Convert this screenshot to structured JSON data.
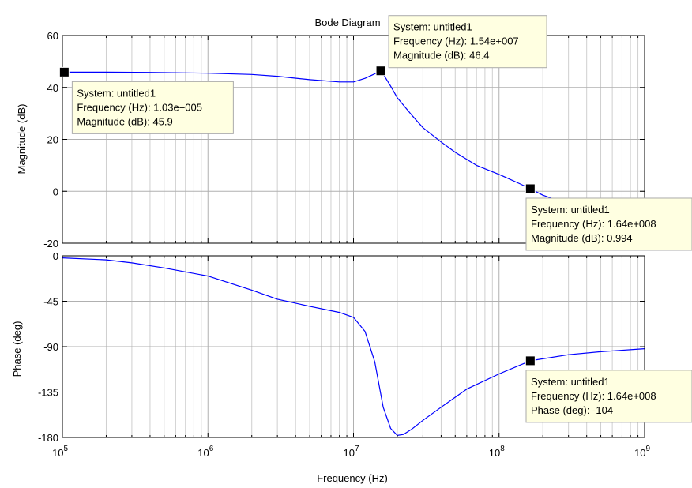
{
  "chart_data": {
    "type": "line",
    "title": "Bode Diagram",
    "xlabel": "Frequency  (Hz)",
    "xscale": "log",
    "xlim": [
      100000,
      1000000000
    ],
    "x_ticks": [
      100000,
      1000000,
      10000000,
      100000000,
      1000000000
    ],
    "x_tick_labels": [
      {
        "base": "10",
        "exp": "5"
      },
      {
        "base": "10",
        "exp": "6"
      },
      {
        "base": "10",
        "exp": "7"
      },
      {
        "base": "10",
        "exp": "8"
      },
      {
        "base": "10",
        "exp": "9"
      }
    ],
    "grid": true,
    "line_color": "#0000ff",
    "panels": [
      {
        "name": "magnitude",
        "ylabel": "Magnitude (dB)",
        "ylim": [
          -20,
          60
        ],
        "y_ticks": [
          -20,
          0,
          20,
          40,
          60
        ],
        "x": [
          100000,
          200000,
          400000,
          1000000,
          2000000,
          3000000,
          5000000,
          8000000,
          10000000,
          12000000,
          15500000,
          18000000,
          20000000,
          25000000,
          30000000,
          40000000,
          50000000,
          70000000,
          100000000,
          140000000,
          164000000,
          200000000,
          300000000
        ],
        "y": [
          45.9,
          45.9,
          45.8,
          45.5,
          45.0,
          44.3,
          43.0,
          42.1,
          42.1,
          43.5,
          46.4,
          40.5,
          36.0,
          29.5,
          24.5,
          19.0,
          15.0,
          10.0,
          6.5,
          2.8,
          0.994,
          -1.5,
          -5.0
        ]
      },
      {
        "name": "phase",
        "ylabel": "Phase (deg)",
        "ylim": [
          -180,
          0
        ],
        "y_ticks": [
          -180,
          -135,
          -90,
          -45,
          0
        ],
        "x": [
          100000,
          200000,
          300000,
          500000,
          1000000,
          2000000,
          3000000,
          5000000,
          8000000,
          10000000,
          12000000,
          14000000,
          16000000,
          18000000,
          20000000,
          22000000,
          25000000,
          30000000,
          40000000,
          60000000,
          100000000,
          164000000,
          300000000,
          500000000,
          1000000000
        ],
        "y": [
          -2,
          -4,
          -7,
          -12,
          -20,
          -34,
          -43,
          -50,
          -56,
          -61,
          -75,
          -105,
          -150,
          -171,
          -178,
          -177,
          -172,
          -163,
          -150,
          -132,
          -117,
          -104,
          -98,
          -95,
          -92
        ]
      }
    ],
    "datatips": [
      {
        "panel": 0,
        "x": 103000,
        "y": 45.9,
        "placement": "below-right",
        "lines": [
          "System: untitled1",
          "Frequency (Hz): 1.03e+005",
          "Magnitude (dB): 45.9"
        ]
      },
      {
        "panel": 0,
        "x": 15400000,
        "y": 46.4,
        "placement": "above-right",
        "lines": [
          "System: untitled1",
          "Frequency (Hz): 1.54e+007",
          "Magnitude (dB): 46.4"
        ]
      },
      {
        "panel": 0,
        "x": 164000000,
        "y": 0.994,
        "placement": "below-right",
        "lines": [
          "System: untitled1",
          "Frequency (Hz): 1.64e+008",
          "Magnitude (dB): 0.994"
        ]
      },
      {
        "panel": 1,
        "x": 164000000,
        "y": -104,
        "placement": "below-right",
        "lines": [
          "System: untitled1",
          "Frequency (Hz): 1.64e+008",
          "Phase (deg): -104"
        ]
      }
    ]
  }
}
